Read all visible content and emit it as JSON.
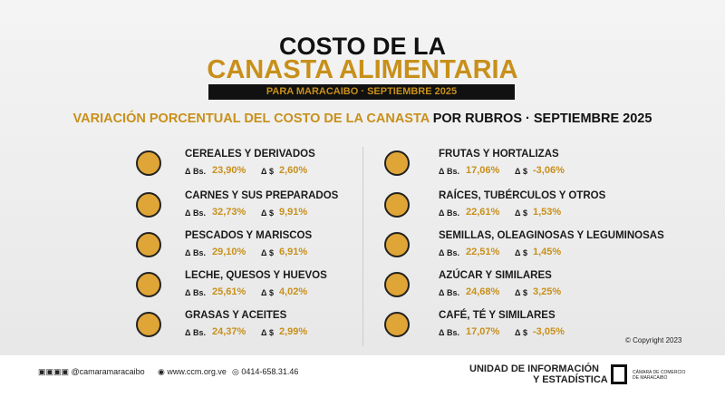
{
  "header": {
    "title_line1": "COSTO DE LA",
    "title_line2": "CANASTA ALIMENTARIA",
    "banner": "PARA MARACAIBO · SEPTIEMBRE 2025",
    "subtitle_gold": "VARIACIÓN PORCENTUAL DEL COSTO DE LA CANASTA",
    "subtitle_dark": "POR RUBROS · SEPTIEMBRE 2025"
  },
  "labels": {
    "bs": "Δ Bs.",
    "usd": "Δ $"
  },
  "items": [
    {
      "name": "CEREALES Y DERIVADOS",
      "bs": "23,90%",
      "usd": "2,60%"
    },
    {
      "name": "CARNES Y SUS PREPARADOS",
      "bs": "32,73%",
      "usd": "9,91%"
    },
    {
      "name": "PESCADOS Y MARISCOS",
      "bs": "29,10%",
      "usd": "6,91%"
    },
    {
      "name": "LECHE, QUESOS Y HUEVOS",
      "bs": "25,61%",
      "usd": "4,02%"
    },
    {
      "name": "GRASAS Y ACEITES",
      "bs": "24,37%",
      "usd": "2,99%"
    },
    {
      "name": "FRUTAS Y HORTALIZAS",
      "bs": "17,06%",
      "usd": "-3,06%"
    },
    {
      "name": "RAÍCES, TUBÉRCULOS Y OTROS",
      "bs": "22,61%",
      "usd": "1,53%"
    },
    {
      "name": "SEMILLAS, OLEAGINOSAS Y LEGUMINOSAS",
      "bs": "22,51%",
      "usd": "1,45%"
    },
    {
      "name": "AZÚCAR Y SIMILARES",
      "bs": "24,68%",
      "usd": "3,25%"
    },
    {
      "name": "CAFÉ, TÉ Y SIMILARES",
      "bs": "17,07%",
      "usd": "-3,05%"
    }
  ],
  "footer": {
    "social": "@camaramaracaibo",
    "web": "www.ccm.org.ve",
    "phone": "0414-658.31.46",
    "unit_line1": "UNIDAD DE INFORMACIÓN",
    "unit_line2": "Y ESTADÍSTICA",
    "org": "CÁMARA DE COMERCIO DE MARACAIBO",
    "copyright": "© Copyright 2023"
  }
}
